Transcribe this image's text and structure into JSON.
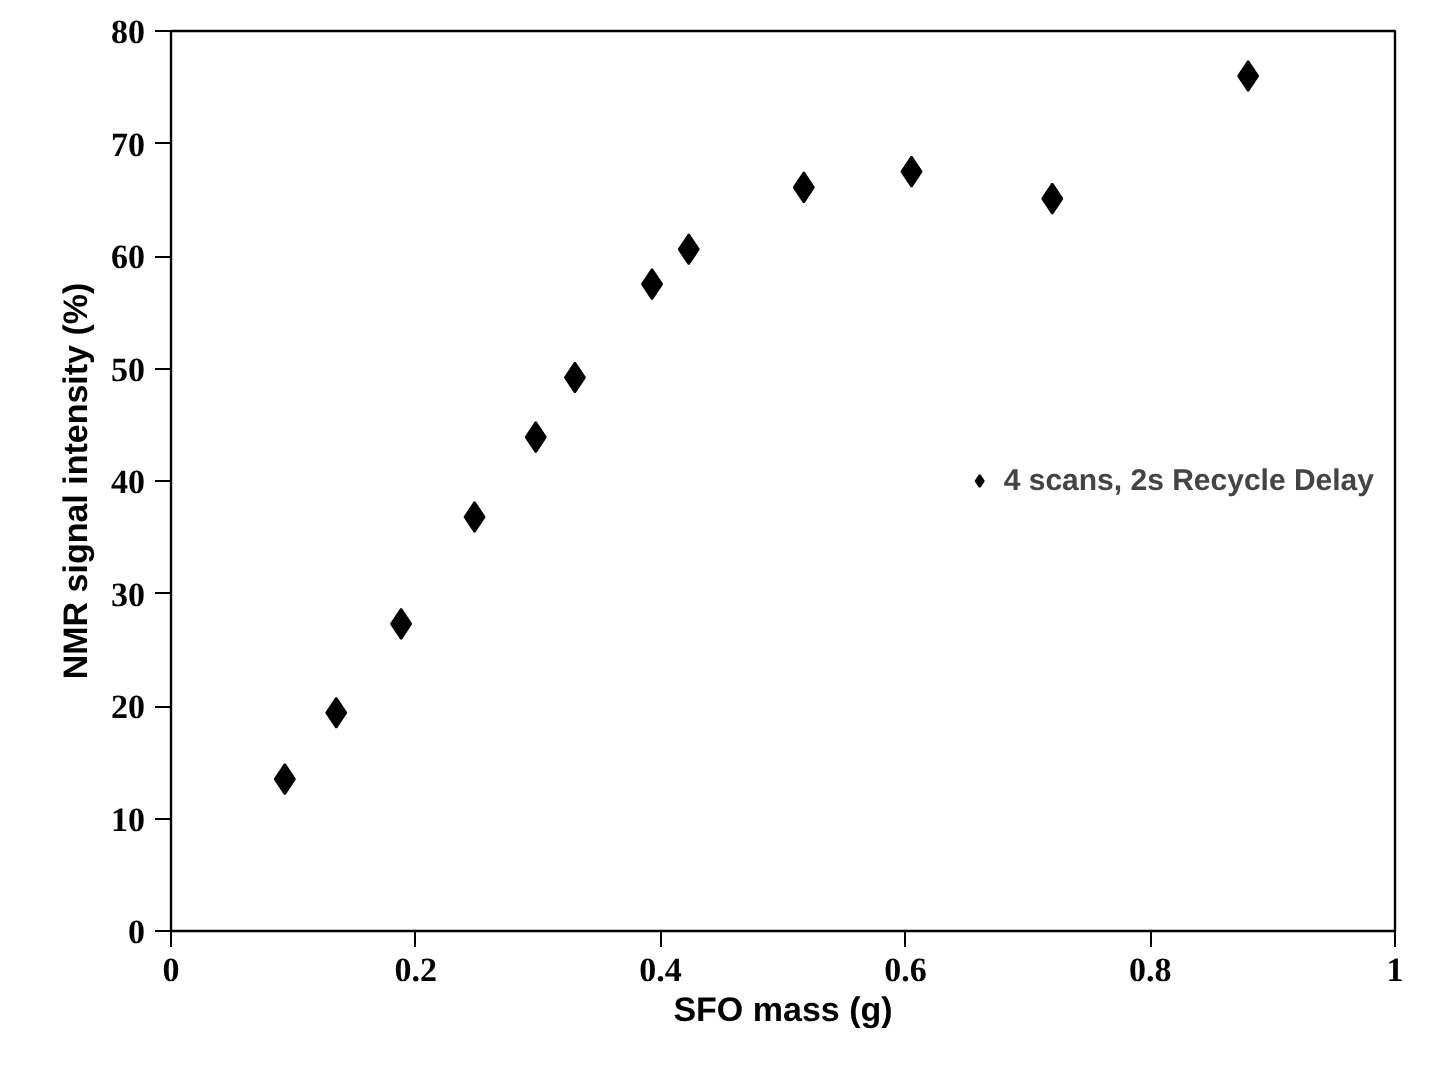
{
  "chart_data": {
    "type": "scatter",
    "xlabel": "SFO mass (g)",
    "ylabel": "NMR signal intensity (%)",
    "x": [
      0.093,
      0.135,
      0.188,
      0.248,
      0.298,
      0.33,
      0.393,
      0.423,
      0.517,
      0.605,
      0.72,
      0.88
    ],
    "series": [
      {
        "name": "4 scans, 2s Recycle Delay",
        "color": "#000000",
        "values": [
          13.5,
          19.4,
          27.3,
          36.8,
          43.9,
          49.2,
          57.5,
          60.6,
          66.1,
          67.5,
          65.1,
          76.0
        ]
      }
    ],
    "xlim": [
      0,
      1
    ],
    "xticks": [
      0,
      0.2,
      0.4,
      0.6,
      0.8,
      1
    ],
    "ylim": [
      0,
      80
    ],
    "yticks": [
      0,
      10,
      20,
      30,
      40,
      50,
      60,
      70,
      80
    ],
    "marker": "diamond",
    "grid": false,
    "legend": "right"
  }
}
